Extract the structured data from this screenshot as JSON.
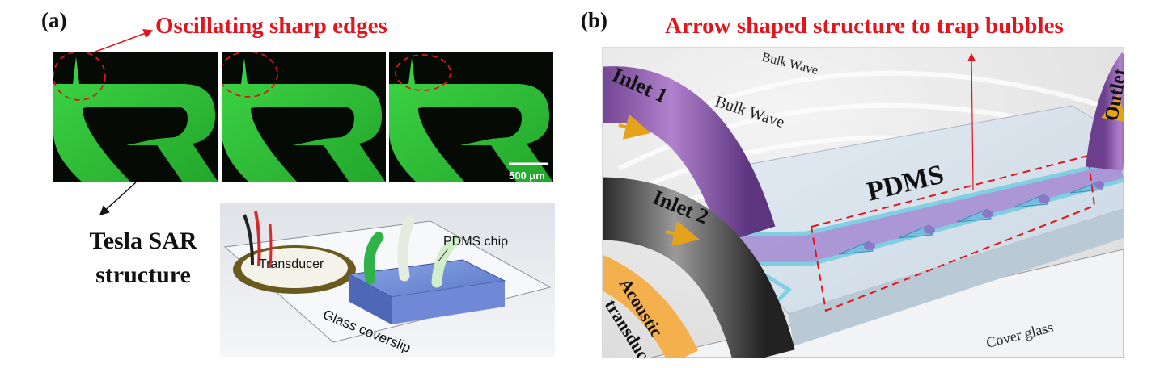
{
  "panel_a": {
    "label": "(a)",
    "title": "Oscillating sharp edges",
    "structure_label_line1": "Tesla SAR",
    "structure_label_line2": "structure",
    "scale_bar": "500 μm",
    "chip": {
      "transducer": "Transducer",
      "pdms_chip": "PDMS chip",
      "coverslip": "Glass coverslip"
    }
  },
  "panel_b": {
    "label": "(b)",
    "title": "Arrow shaped structure to trap bubbles",
    "bulk_wave_1": "Bulk Wave",
    "bulk_wave_2": "Bulk Wave",
    "inlet_1": "Inlet 1",
    "inlet_2": "Inlet 2",
    "outlet": "Outlet",
    "pdms": "PDMS",
    "acoustic_line1": "Acoustic",
    "acoustic_line2": "transducer",
    "cover_glass": "Cover glass"
  },
  "colors": {
    "red_annotation": "#e3141b",
    "channel_green": "#35c53b",
    "channel_purple": "#a58ad2",
    "wall_cyan": "#7fd0e2",
    "transducer_orange": "#f4b04c"
  }
}
